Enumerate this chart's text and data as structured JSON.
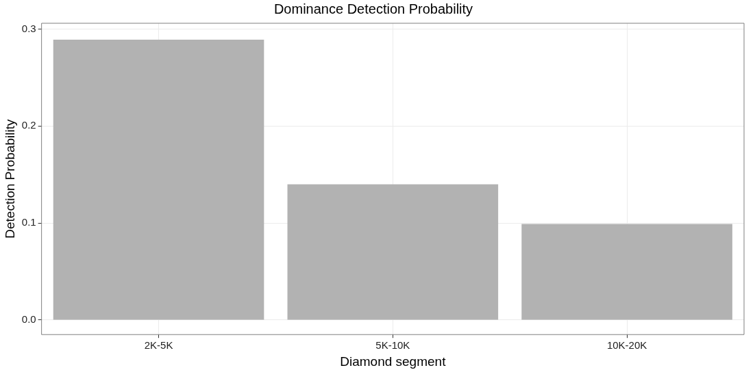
{
  "chart_data": {
    "type": "bar",
    "title": "Dominance Detection Probability",
    "xlabel": "Diamond segment",
    "ylabel": "Detection Probability",
    "categories": [
      "2K-5K",
      "5K-10K",
      "10K-20K"
    ],
    "values": [
      0.289,
      0.14,
      0.099
    ],
    "color": "#b2b2b2",
    "ylim": [
      -0.015,
      0.306
    ],
    "yticks": [
      {
        "value": 0,
        "label": "0.0"
      },
      {
        "value": 0.1,
        "label": "0.1"
      },
      {
        "value": 0.2,
        "label": "0.2"
      },
      {
        "value": 0.3,
        "label": "0.3"
      }
    ],
    "grid": true,
    "legend": false
  }
}
